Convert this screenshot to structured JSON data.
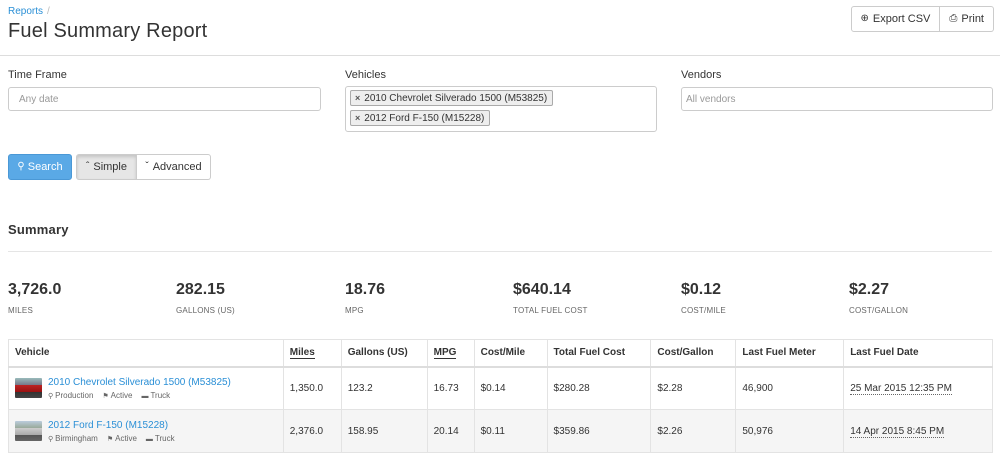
{
  "header": {
    "breadcrumb": "Reports",
    "breadcrumb_sep": "/",
    "title": "Fuel Summary Report",
    "export_label": "Export CSV",
    "print_label": "Print"
  },
  "filters": {
    "time_frame_label": "Time Frame",
    "time_frame_placeholder": "Any date",
    "vehicles_label": "Vehicles",
    "vehicle_tags": [
      "2010 Chevrolet Silverado 1500 (M53825)",
      "2012 Ford F-150 (M15228)"
    ],
    "vendors_label": "Vendors",
    "vendors_placeholder": "All vendors",
    "search_label": "Search",
    "simple_label": "Simple",
    "advanced_label": "Advanced"
  },
  "summary": {
    "title": "Summary",
    "stats": [
      {
        "value": "3,726.0",
        "label": "MILES"
      },
      {
        "value": "282.15",
        "label": "GALLONS (US)"
      },
      {
        "value": "18.76",
        "label": "MPG"
      },
      {
        "value": "$640.14",
        "label": "TOTAL FUEL COST"
      },
      {
        "value": "$0.12",
        "label": "COST/MILE"
      },
      {
        "value": "$2.27",
        "label": "COST/GALLON"
      }
    ]
  },
  "table": {
    "headers": [
      "Vehicle",
      "Miles",
      "Gallons (US)",
      "MPG",
      "Cost/Mile",
      "Total Fuel Cost",
      "Cost/Gallon",
      "Last Fuel Meter",
      "Last Fuel Date"
    ],
    "rows": [
      {
        "vehicle": "2010 Chevrolet Silverado 1500 (M53825)",
        "location": "Production",
        "status": "Active",
        "type": "Truck",
        "miles": "1,350.0",
        "gallons": "123.2",
        "mpg": "16.73",
        "cost_mile": "$0.14",
        "total_cost": "$280.28",
        "cost_gallon": "$2.28",
        "meter": "46,900",
        "date": "25 Mar 2015 12:35 PM"
      },
      {
        "vehicle": "2012 Ford F-150 (M15228)",
        "location": "Birmingham",
        "status": "Active",
        "type": "Truck",
        "miles": "2,376.0",
        "gallons": "158.95",
        "mpg": "20.14",
        "cost_mile": "$0.11",
        "total_cost": "$359.86",
        "cost_gallon": "$2.26",
        "meter": "50,976",
        "date": "14 Apr 2015 8:45 PM"
      }
    ]
  },
  "icons": {
    "export": "circle-arrow-icon",
    "print": "printer-icon",
    "remove": "close-icon",
    "search": "search-icon",
    "simple": "chevron-up-icon",
    "advanced": "chevron-down-icon",
    "location": "map-pin-icon",
    "status": "flag-icon",
    "type": "folder-icon"
  },
  "colors": {
    "link": "#2a8fd6",
    "primary_button": "#5aa9e6"
  }
}
